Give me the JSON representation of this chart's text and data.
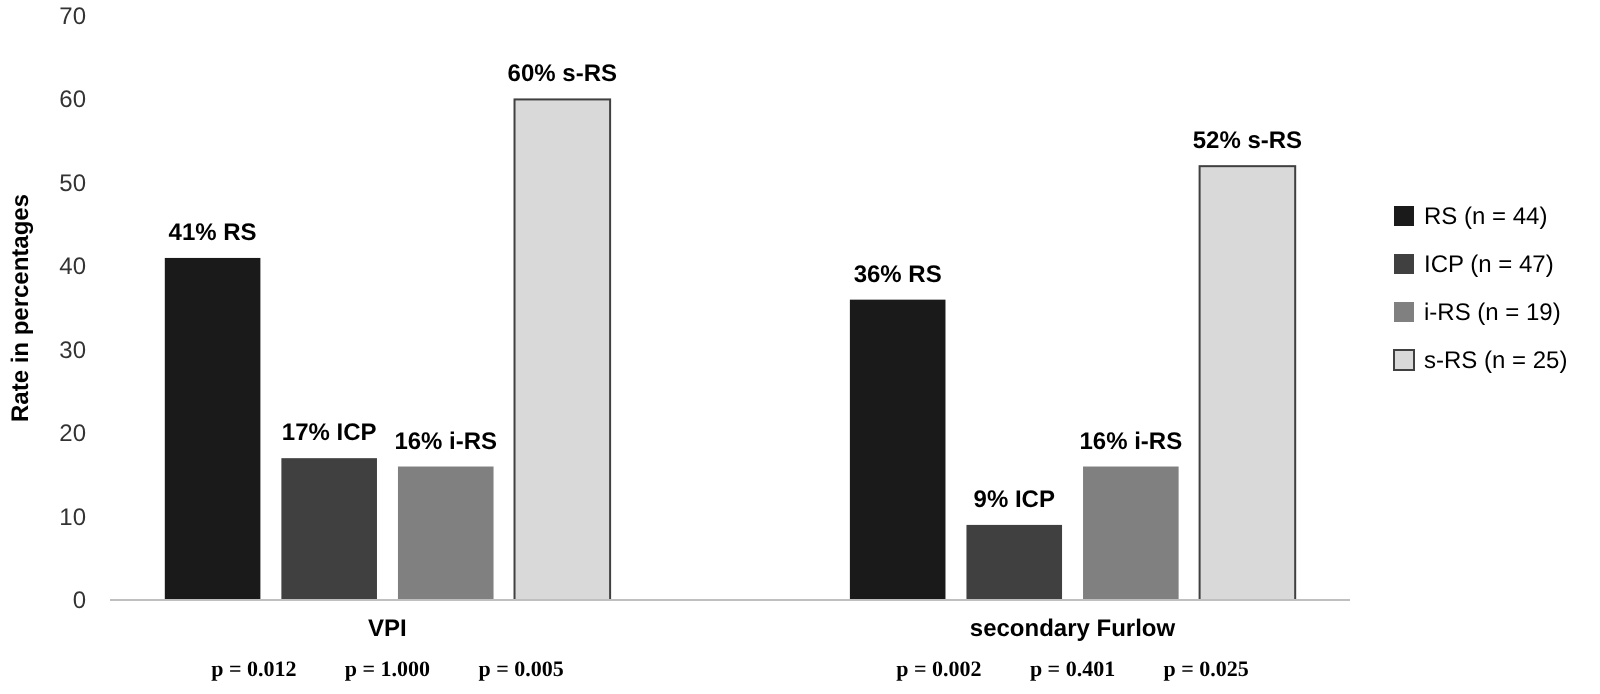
{
  "chart_data": {
    "type": "bar",
    "ylabel": "Rate in percentages",
    "categories": [
      "VPI",
      "secondary Furlow"
    ],
    "series": [
      {
        "name": "RS (n = 44)",
        "color": "#1a1a1a",
        "values": [
          41,
          36
        ],
        "value_labels": [
          "41% RS",
          "36% RS"
        ]
      },
      {
        "name": "ICP (n = 47)",
        "color": "#404040",
        "values": [
          17,
          9
        ],
        "value_labels": [
          "17% ICP",
          "9% ICP"
        ]
      },
      {
        "name": "i-RS (n = 19)",
        "color": "#808080",
        "values": [
          16,
          16
        ],
        "value_labels": [
          "16% i-RS",
          "16% i-RS"
        ]
      },
      {
        "name": "s-RS (n = 25)",
        "color": "#d9d9d9",
        "values": [
          60,
          52
        ],
        "value_labels": [
          "60% s-RS",
          "52% s-RS"
        ]
      }
    ],
    "ylim": [
      0,
      70
    ],
    "yticks": [
      0,
      10,
      20,
      30,
      40,
      50,
      60,
      70
    ],
    "grid": false,
    "legend": "right",
    "annotations": [
      "p = 0.012",
      "p = 1.000",
      "p = 0.005",
      "p = 0.002",
      "p = 0.401",
      "p = 0.025"
    ]
  }
}
